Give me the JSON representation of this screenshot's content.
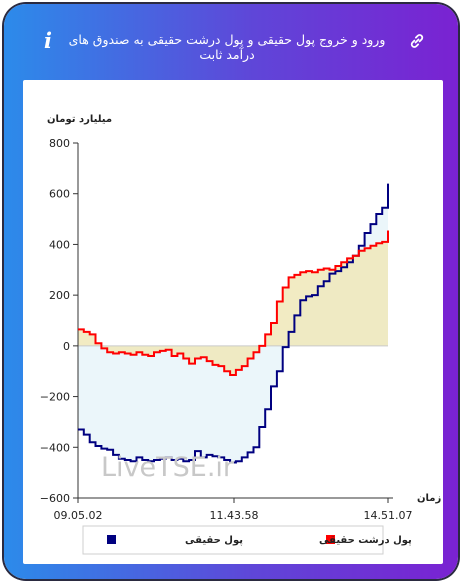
{
  "header": {
    "title": "ورود و خروج پول حقیقی و پول درشت حقیقی به صندوق های درآمد ثابت",
    "info_icon": "info-icon",
    "link_icon": "link-icon"
  },
  "colors": {
    "background_gradient": [
      "#2c8bea",
      "#7a22d2"
    ],
    "series_blue": "#000080",
    "series_red": "#ff0000",
    "fill_blue": "#e8f4f9",
    "fill_yellow": "#f0e8b8"
  },
  "watermark": "LiveTSE.ir",
  "chart_data": {
    "type": "line",
    "ylabel": "میلیارد تومان",
    "xlabel": "زمان",
    "ylim": [
      -600,
      800
    ],
    "yticks": [
      800,
      600,
      400,
      200,
      0,
      -200,
      -400,
      -600
    ],
    "ytick_labels": [
      "800",
      "600",
      "400",
      "200",
      "0",
      "−200",
      "−400",
      "−600"
    ],
    "xticks": [
      "09.05.02",
      "11.43.58",
      "14.51.07"
    ],
    "grid": false,
    "legend_position": "bottom",
    "series": [
      {
        "name": "پول حقیقی",
        "color": "#000080",
        "values": [
          -330,
          -350,
          -380,
          -395,
          -405,
          -410,
          -430,
          -445,
          -450,
          -455,
          -440,
          -450,
          -455,
          -450,
          -445,
          -440,
          -450,
          -445,
          -455,
          -450,
          -415,
          -440,
          -430,
          -435,
          -440,
          -450,
          -460,
          -455,
          -440,
          -420,
          -400,
          -320,
          -250,
          -160,
          -100,
          -5,
          55,
          120,
          180,
          195,
          200,
          235,
          255,
          285,
          295,
          310,
          330,
          355,
          395,
          445,
          480,
          520,
          545,
          640
        ]
      },
      {
        "name": "پول درشت حقیقی",
        "color": "#ff0000",
        "values": [
          65,
          55,
          45,
          10,
          -10,
          -25,
          -30,
          -25,
          -30,
          -35,
          -25,
          -35,
          -40,
          -25,
          -20,
          -15,
          -40,
          -30,
          -50,
          -70,
          -50,
          -45,
          -60,
          -75,
          -80,
          -100,
          -115,
          -95,
          -80,
          -50,
          -25,
          0,
          45,
          90,
          175,
          230,
          270,
          280,
          290,
          295,
          290,
          300,
          305,
          300,
          315,
          330,
          345,
          355,
          375,
          385,
          395,
          405,
          410,
          455
        ]
      }
    ]
  },
  "legend": {
    "items": [
      {
        "label": "پول درشت حقیقی",
        "color": "#ff0000"
      },
      {
        "label": "پول حقیقی",
        "color": "#000080"
      }
    ]
  }
}
